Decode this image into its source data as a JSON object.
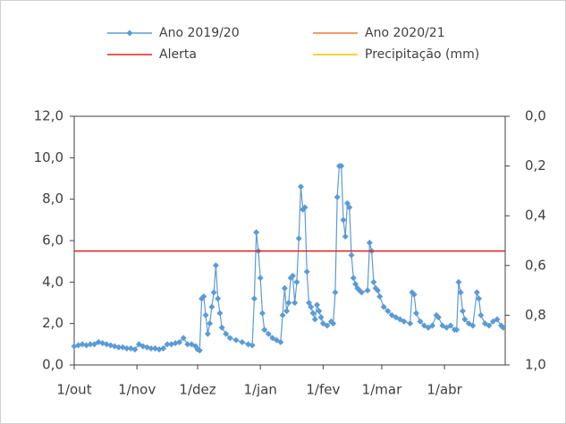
{
  "chart_data": {
    "type": "line",
    "xlim": [
      0,
      213
    ],
    "xticks": [
      {
        "value": 0,
        "label": "1/out"
      },
      {
        "value": 31,
        "label": "1/nov"
      },
      {
        "value": 61,
        "label": "1/dez"
      },
      {
        "value": 92,
        "label": "1/jan"
      },
      {
        "value": 123,
        "label": "1/fev"
      },
      {
        "value": 152,
        "label": "1/mar"
      },
      {
        "value": 183,
        "label": "1/abr"
      }
    ],
    "ylim": [
      0,
      12
    ],
    "yticks": [
      {
        "value": 0,
        "label": "0,0"
      },
      {
        "value": 2,
        "label": "2,0"
      },
      {
        "value": 4,
        "label": "4,0"
      },
      {
        "value": 6,
        "label": "6,0"
      },
      {
        "value": 8,
        "label": "8,0"
      },
      {
        "value": 10,
        "label": "10,0"
      },
      {
        "value": 12,
        "label": "12,0"
      }
    ],
    "y2lim": [
      0,
      1
    ],
    "y2_reversed": true,
    "y2ticks": [
      {
        "value": 0,
        "label": "0,0"
      },
      {
        "value": 0.2,
        "label": "0,2"
      },
      {
        "value": 0.4,
        "label": "0,4"
      },
      {
        "value": 0.6,
        "label": "0,6"
      },
      {
        "value": 0.8,
        "label": "0,8"
      },
      {
        "value": 1,
        "label": "1,0"
      }
    ],
    "series": [
      {
        "name": "Ano 2019/20",
        "color": "#5b9bd5",
        "marker": "diamond",
        "x": [
          0,
          2,
          4,
          6,
          8,
          10,
          12,
          14,
          16,
          18,
          20,
          22,
          24,
          26,
          28,
          30,
          32,
          34,
          36,
          38,
          40,
          42,
          44,
          46,
          48,
          50,
          52,
          54,
          56,
          58,
          60,
          61,
          62,
          63,
          64,
          65,
          66,
          67,
          68,
          69,
          70,
          71,
          72,
          73,
          75,
          77,
          80,
          83,
          86,
          88,
          89,
          90,
          91,
          92,
          93,
          94,
          96,
          98,
          100,
          102,
          103,
          104,
          105,
          106,
          107,
          108,
          109,
          110,
          111,
          112,
          113,
          114,
          115,
          116,
          117,
          118,
          119,
          120,
          121,
          122,
          123,
          125,
          127,
          128,
          129,
          130,
          131,
          132,
          133,
          134,
          135,
          136,
          137,
          138,
          139,
          140,
          141,
          142,
          145,
          146,
          147,
          148,
          149,
          150,
          151,
          153,
          155,
          157,
          159,
          161,
          163,
          166,
          167,
          168,
          169,
          171,
          173,
          175,
          177,
          179,
          180,
          182,
          184,
          186,
          188,
          189,
          190,
          191,
          192,
          193,
          195,
          197,
          199,
          200,
          201,
          203,
          205,
          207,
          209,
          211,
          212
        ],
        "values": [
          0.9,
          0.95,
          1.0,
          0.95,
          1.0,
          1.0,
          1.1,
          1.05,
          1.0,
          0.95,
          0.9,
          0.85,
          0.85,
          0.8,
          0.8,
          0.75,
          1.0,
          0.9,
          0.85,
          0.8,
          0.8,
          0.75,
          0.8,
          1.0,
          1.0,
          1.05,
          1.1,
          1.3,
          1.0,
          1.0,
          0.9,
          0.75,
          0.7,
          3.2,
          3.3,
          2.4,
          1.5,
          2.0,
          2.8,
          3.5,
          4.8,
          3.2,
          2.5,
          1.8,
          1.5,
          1.3,
          1.2,
          1.1,
          1.0,
          0.95,
          3.2,
          6.4,
          5.5,
          4.2,
          2.5,
          1.7,
          1.5,
          1.3,
          1.2,
          1.1,
          2.4,
          3.7,
          2.6,
          3.0,
          4.2,
          4.3,
          3.0,
          4.0,
          6.1,
          8.6,
          7.5,
          7.6,
          4.5,
          3.0,
          2.8,
          2.5,
          2.2,
          2.9,
          2.6,
          2.3,
          2.0,
          1.9,
          2.1,
          2.0,
          3.5,
          8.1,
          9.6,
          9.6,
          7.0,
          6.2,
          7.8,
          7.6,
          5.3,
          4.2,
          3.9,
          3.7,
          3.6,
          3.5,
          3.6,
          5.9,
          5.5,
          4.0,
          3.7,
          3.6,
          3.3,
          2.8,
          2.6,
          2.4,
          2.3,
          2.2,
          2.1,
          2.0,
          3.5,
          3.4,
          2.5,
          2.1,
          1.9,
          1.8,
          1.9,
          2.4,
          2.3,
          1.9,
          1.8,
          1.9,
          1.7,
          1.7,
          4.0,
          3.5,
          2.6,
          2.2,
          2.0,
          1.9,
          3.5,
          3.2,
          2.4,
          2.0,
          1.9,
          2.1,
          2.2,
          1.9,
          1.8
        ]
      },
      {
        "name": "Ano 2020/21",
        "color": "#ed7d31",
        "x": [],
        "values": []
      },
      {
        "name": "Alerta",
        "color": "#e02020",
        "x": [
          0,
          213
        ],
        "values": [
          5.5,
          5.5
        ]
      },
      {
        "name": "Precipitação (mm)",
        "color": "#ffc000",
        "axis": "y2",
        "x": [],
        "values": []
      }
    ]
  }
}
